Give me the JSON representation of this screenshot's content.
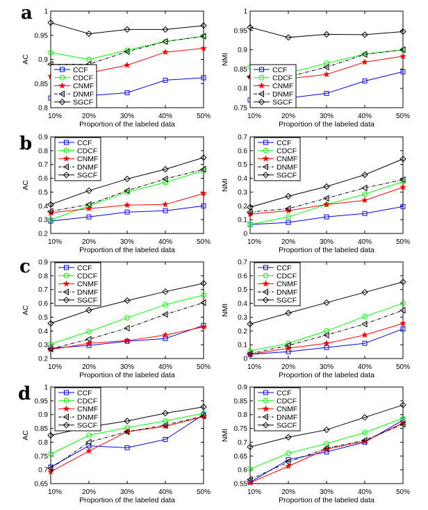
{
  "series_styles": {
    "CCF": {
      "color": "#0000ff",
      "marker": "square",
      "dash": ""
    },
    "CDCF": {
      "color": "#00ff00",
      "marker": "circle",
      "dash": ""
    },
    "CNMF": {
      "color": "#ff0000",
      "marker": "star",
      "dash": ""
    },
    "DNMF": {
      "color": "#000000",
      "marker": "triangle-left",
      "dash": "5,2,1,2"
    },
    "SGCF": {
      "color": "#000000",
      "marker": "diamond",
      "dash": ""
    }
  },
  "chart_data": [
    {
      "panel": "a",
      "type": "line",
      "xlabel": "Proportion of the labeled data",
      "ylabel": "AC",
      "categories": [
        "10%",
        "20%",
        "30%",
        "40%",
        "50%"
      ],
      "ylim": [
        0.8,
        1.0
      ],
      "yticks": [
        "0.8",
        "0.85",
        "0.9",
        "0.95",
        "1"
      ],
      "legend": "bottom-left",
      "series": [
        {
          "name": "CCF",
          "values": [
            0.82,
            0.825,
            0.831,
            0.857,
            0.862
          ]
        },
        {
          "name": "CDCF",
          "values": [
            0.914,
            0.9,
            0.919,
            0.937,
            0.948
          ]
        },
        {
          "name": "CNMF",
          "values": [
            0.865,
            0.872,
            0.888,
            0.915,
            0.923
          ]
        },
        {
          "name": "DNMF",
          "values": [
            0.89,
            0.89,
            0.916,
            0.937,
            0.948
          ]
        },
        {
          "name": "SGCF",
          "values": [
            0.976,
            0.953,
            0.962,
            0.962,
            0.97
          ]
        }
      ]
    },
    {
      "panel": "",
      "type": "line",
      "xlabel": "Proportion of the labeled data",
      "ylabel": "NMI",
      "categories": [
        "10%",
        "20%",
        "30%",
        "40%",
        "50%"
      ],
      "ylim": [
        0.75,
        1.0
      ],
      "yticks": [
        "0.75",
        "0.8",
        "0.85",
        "0.9",
        "0.95",
        "1"
      ],
      "legend": "bottom-left",
      "series": [
        {
          "name": "CCF",
          "values": [
            0.77,
            0.775,
            0.787,
            0.819,
            0.843
          ]
        },
        {
          "name": "CDCF",
          "values": [
            0.855,
            0.84,
            0.865,
            0.889,
            0.9
          ]
        },
        {
          "name": "CNMF",
          "values": [
            0.83,
            0.825,
            0.836,
            0.868,
            0.883
          ]
        },
        {
          "name": "DNMF",
          "values": [
            0.83,
            0.83,
            0.855,
            0.888,
            0.9
          ]
        },
        {
          "name": "SGCF",
          "values": [
            0.958,
            0.932,
            0.94,
            0.939,
            0.947
          ]
        }
      ]
    },
    {
      "panel": "b",
      "type": "line",
      "xlabel": "Proportion of the labeled data",
      "ylabel": "AC",
      "categories": [
        "10%",
        "20%",
        "30%",
        "40%",
        "50%"
      ],
      "ylim": [
        0.2,
        0.9
      ],
      "yticks": [
        "0.2",
        "0.3",
        "0.4",
        "0.5",
        "0.6",
        "0.7",
        "0.8",
        "0.9"
      ],
      "legend": "top-left",
      "series": [
        {
          "name": "CCF",
          "values": [
            0.29,
            0.32,
            0.355,
            0.365,
            0.4
          ]
        },
        {
          "name": "CDCF",
          "values": [
            0.3,
            0.4,
            0.5,
            0.57,
            0.655
          ]
        },
        {
          "name": "CNMF",
          "values": [
            0.35,
            0.38,
            0.405,
            0.41,
            0.49
          ]
        },
        {
          "name": "DNMF",
          "values": [
            0.36,
            0.41,
            0.51,
            0.595,
            0.665
          ]
        },
        {
          "name": "SGCF",
          "values": [
            0.41,
            0.51,
            0.595,
            0.665,
            0.75
          ]
        }
      ]
    },
    {
      "panel": "",
      "type": "line",
      "xlabel": "Proportion of the labeled data",
      "ylabel": "NMI",
      "categories": [
        "10%",
        "20%",
        "30%",
        "40%",
        "50%"
      ],
      "ylim": [
        0,
        0.7
      ],
      "yticks": [
        "0",
        "0.1",
        "0.2",
        "0.3",
        "0.4",
        "0.5",
        "0.6",
        "0.7"
      ],
      "legend": "top-left",
      "series": [
        {
          "name": "CCF",
          "values": [
            0.065,
            0.08,
            0.12,
            0.145,
            0.195
          ]
        },
        {
          "name": "CDCF",
          "values": [
            0.065,
            0.12,
            0.21,
            0.285,
            0.375
          ]
        },
        {
          "name": "CNMF",
          "values": [
            0.14,
            0.165,
            0.21,
            0.24,
            0.335
          ]
        },
        {
          "name": "DNMF",
          "values": [
            0.155,
            0.18,
            0.255,
            0.33,
            0.39
          ]
        },
        {
          "name": "SGCF",
          "values": [
            0.19,
            0.27,
            0.34,
            0.425,
            0.54
          ]
        }
      ]
    },
    {
      "panel": "c",
      "type": "line",
      "xlabel": "Proportion of the labeled data",
      "ylabel": "AC",
      "categories": [
        "10%",
        "20%",
        "30%",
        "40%",
        "50%"
      ],
      "ylim": [
        0.2,
        0.9
      ],
      "yticks": [
        "0.2",
        "0.3",
        "0.4",
        "0.5",
        "0.6",
        "0.7",
        "0.8",
        "0.9"
      ],
      "legend": "top-left",
      "series": [
        {
          "name": "CCF",
          "values": [
            0.275,
            0.295,
            0.325,
            0.345,
            0.44
          ]
        },
        {
          "name": "CDCF",
          "values": [
            0.305,
            0.395,
            0.495,
            0.59,
            0.66
          ]
        },
        {
          "name": "CNMF",
          "values": [
            0.265,
            0.31,
            0.33,
            0.37,
            0.43
          ]
        },
        {
          "name": "DNMF",
          "values": [
            0.27,
            0.34,
            0.42,
            0.52,
            0.605
          ]
        },
        {
          "name": "SGCF",
          "values": [
            0.455,
            0.55,
            0.62,
            0.685,
            0.745
          ]
        }
      ]
    },
    {
      "panel": "",
      "type": "line",
      "xlabel": "Proportion of the labeled data",
      "ylabel": "NMI",
      "categories": [
        "10%",
        "20%",
        "30%",
        "40%",
        "50%"
      ],
      "ylim": [
        0,
        0.7
      ],
      "yticks": [
        "0",
        "0.1",
        "0.2",
        "0.3",
        "0.4",
        "0.5",
        "0.6",
        "0.7"
      ],
      "legend": "top-left",
      "series": [
        {
          "name": "CCF",
          "values": [
            0.03,
            0.05,
            0.08,
            0.11,
            0.215
          ]
        },
        {
          "name": "CDCF",
          "values": [
            0.055,
            0.11,
            0.2,
            0.305,
            0.4
          ]
        },
        {
          "name": "CNMF",
          "values": [
            0.03,
            0.075,
            0.11,
            0.17,
            0.255
          ]
        },
        {
          "name": "DNMF",
          "values": [
            0.035,
            0.095,
            0.17,
            0.25,
            0.35
          ]
        },
        {
          "name": "SGCF",
          "values": [
            0.25,
            0.33,
            0.405,
            0.48,
            0.555
          ]
        }
      ]
    },
    {
      "panel": "d",
      "type": "line",
      "xlabel": "Proportion of the labeled data",
      "ylabel": "AC",
      "categories": [
        "10%",
        "20%",
        "30%",
        "40%",
        "50%"
      ],
      "ylim": [
        0.65,
        1.0
      ],
      "yticks": [
        "0.65",
        "0.7",
        "0.75",
        "0.8",
        "0.85",
        "0.9",
        "0.95",
        "1"
      ],
      "legend": "top-left",
      "series": [
        {
          "name": "CCF",
          "values": [
            0.71,
            0.787,
            0.78,
            0.81,
            0.9
          ]
        },
        {
          "name": "CDCF",
          "values": [
            0.757,
            0.825,
            0.853,
            0.877,
            0.905
          ]
        },
        {
          "name": "CNMF",
          "values": [
            0.693,
            0.768,
            0.838,
            0.857,
            0.893
          ]
        },
        {
          "name": "DNMF",
          "values": [
            0.705,
            0.8,
            0.838,
            0.862,
            0.895
          ]
        },
        {
          "name": "SGCF",
          "values": [
            0.825,
            0.855,
            0.877,
            0.905,
            0.928
          ]
        }
      ]
    },
    {
      "panel": "",
      "type": "line",
      "xlabel": "Proportion of the labeled data",
      "ylabel": "NMI",
      "categories": [
        "10%",
        "20%",
        "30%",
        "40%",
        "50%"
      ],
      "ylim": [
        0.55,
        0.9
      ],
      "yticks": [
        "0.55",
        "0.6",
        "0.65",
        "0.7",
        "0.75",
        "0.8",
        "0.85",
        "0.9"
      ],
      "legend": "top-left",
      "series": [
        {
          "name": "CCF",
          "values": [
            0.555,
            0.637,
            0.665,
            0.7,
            0.78
          ]
        },
        {
          "name": "CDCF",
          "values": [
            0.603,
            0.66,
            0.695,
            0.735,
            0.787
          ]
        },
        {
          "name": "CNMF",
          "values": [
            0.553,
            0.613,
            0.675,
            0.703,
            0.77
          ]
        },
        {
          "name": "DNMF",
          "values": [
            0.565,
            0.628,
            0.678,
            0.707,
            0.765
          ]
        },
        {
          "name": "SGCF",
          "values": [
            0.683,
            0.718,
            0.745,
            0.79,
            0.835
          ]
        }
      ]
    }
  ]
}
